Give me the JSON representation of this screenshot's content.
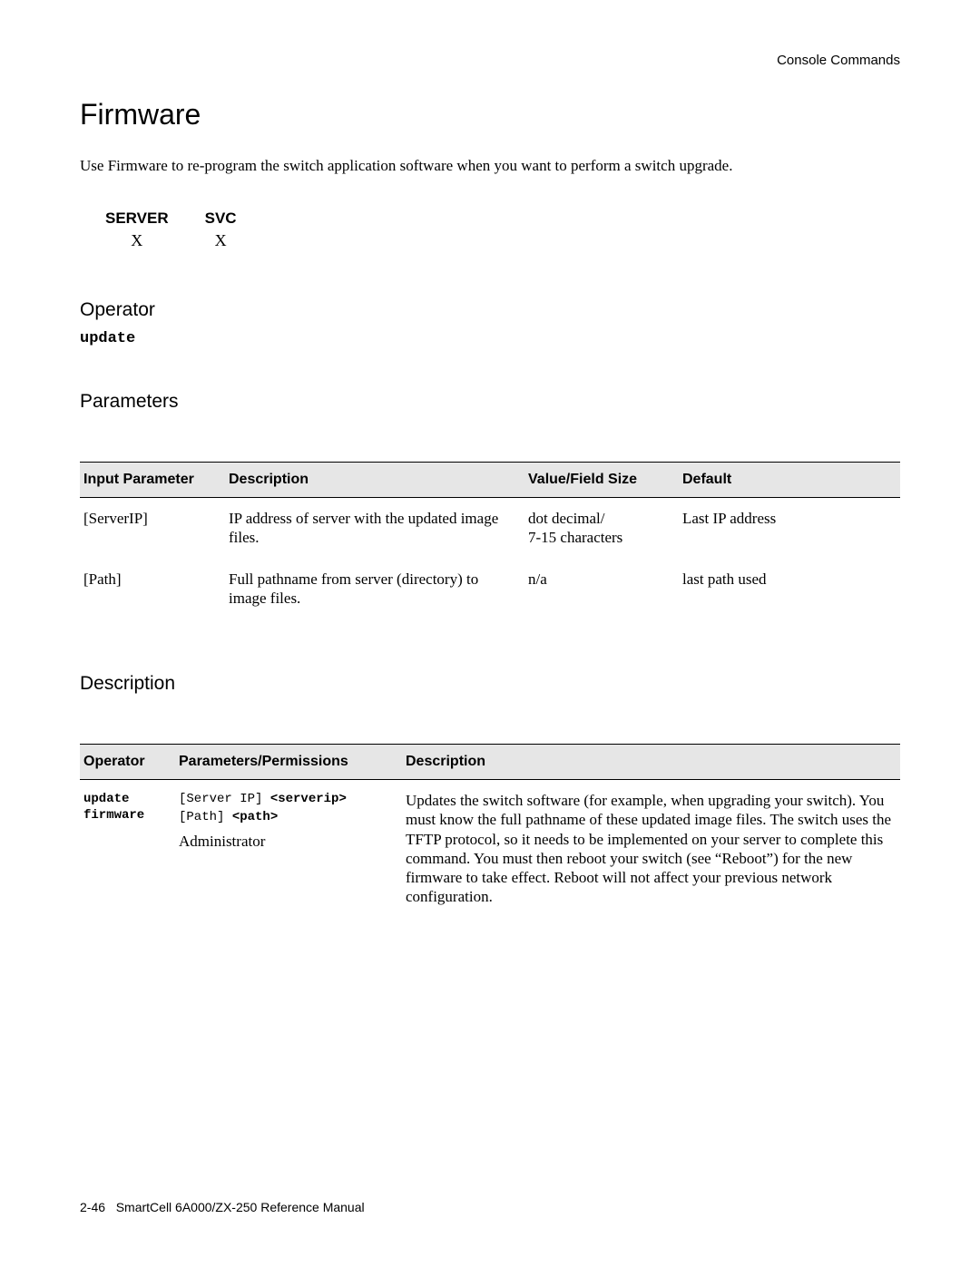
{
  "header": {
    "right": "Console Commands"
  },
  "title": "Firmware",
  "intro": "Use Firmware to re-program the switch application software when you want to perform a switch upgrade.",
  "availability": {
    "cols": [
      "SERVER",
      "SVC"
    ],
    "marks": [
      "X",
      "X"
    ]
  },
  "operator": {
    "heading": "Operator",
    "command": "update"
  },
  "parameters": {
    "heading": "Parameters",
    "columns": [
      "Input Parameter",
      "Description",
      "Value/Field Size",
      "Default"
    ],
    "rows": [
      {
        "param": "[ServerIP]",
        "desc": "IP address of server with the updated image files.",
        "value": "dot decimal/\n7-15 characters",
        "default": "Last IP address"
      },
      {
        "param": "[Path]",
        "desc": "Full pathname from server (directory) to image files.",
        "value": "n/a",
        "default": "last path used"
      }
    ]
  },
  "description": {
    "heading": "Description",
    "columns": [
      "Operator",
      "Parameters/Permissions",
      "Description"
    ],
    "row": {
      "operator_l1": "update",
      "operator_l2": "firmware",
      "pp_line1_pre": "[Server IP] ",
      "pp_line1_b": "<serverip>",
      "pp_line2_pre": "[Path] ",
      "pp_line2_b": "<path>",
      "pp_admin": "Administrator",
      "desc": "Updates the switch software (for example, when upgrading your switch). You must know the full pathname of these updated image files. The switch uses the TFTP protocol, so it needs to be implemented on your server to complete this command. You must then reboot your switch (see  “Reboot”) for the new firmware to take effect. Reboot will not affect your previous network configuration."
    }
  },
  "footer": {
    "page": "2-46",
    "manual": "SmartCell 6A000/ZX-250 Reference Manual"
  },
  "colors": {
    "headerbg": "#e6e6e6",
    "rule": "#000000",
    "text": "#000000",
    "bg": "#ffffff"
  }
}
